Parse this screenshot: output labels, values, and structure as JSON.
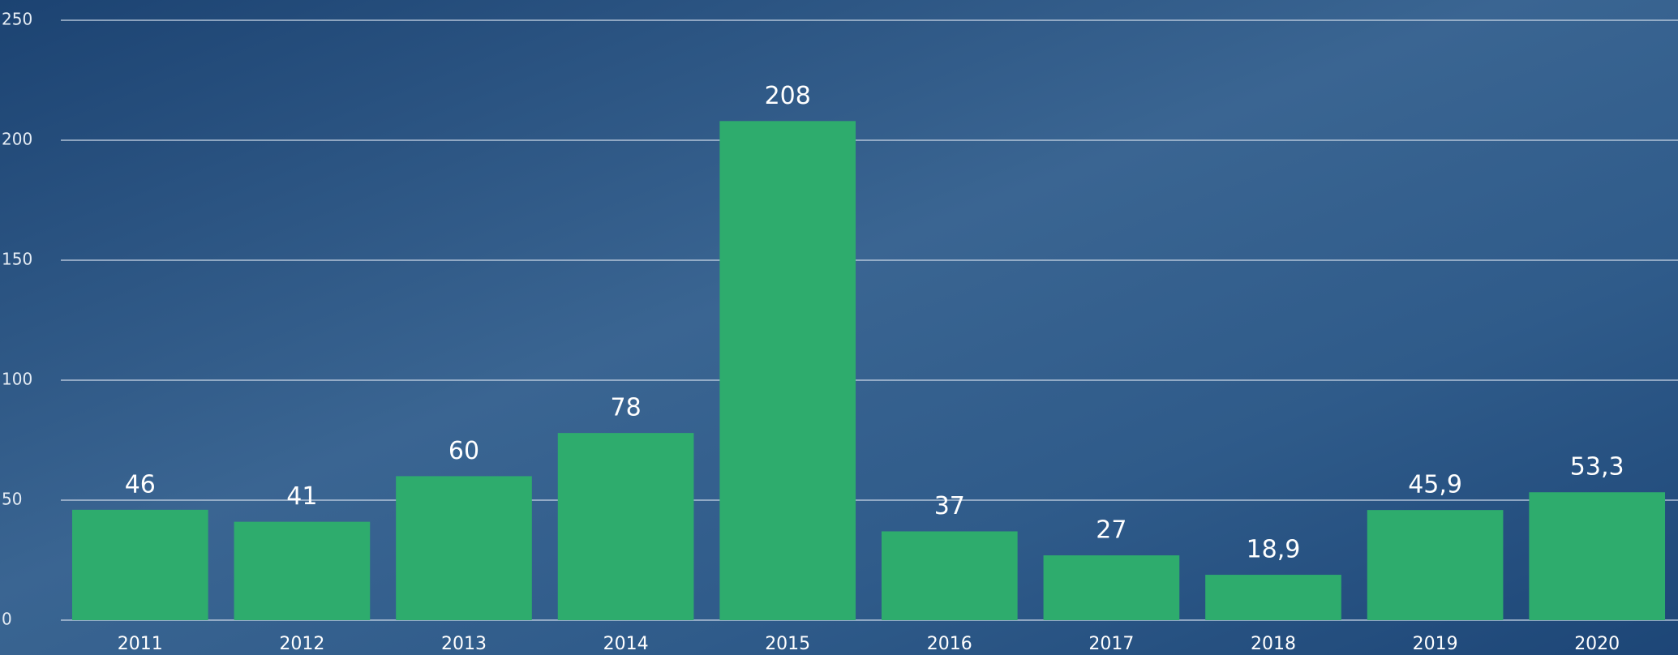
{
  "chart_data": {
    "type": "bar",
    "categories": [
      "2011",
      "2012",
      "2013",
      "2014",
      "2015",
      "2016",
      "2017",
      "2018",
      "2019",
      "2020"
    ],
    "values": [
      46,
      41,
      60,
      78,
      208,
      37,
      27,
      18.9,
      45.9,
      53.3
    ],
    "value_labels": [
      "46",
      "41",
      "60",
      "78",
      "208",
      "37",
      "27",
      "18,9",
      "45,9",
      "53,3"
    ],
    "color": "#2eac6d",
    "ylim": [
      0,
      250
    ],
    "yticks": [
      0,
      50,
      100,
      150,
      200,
      250
    ],
    "grid": true
  }
}
